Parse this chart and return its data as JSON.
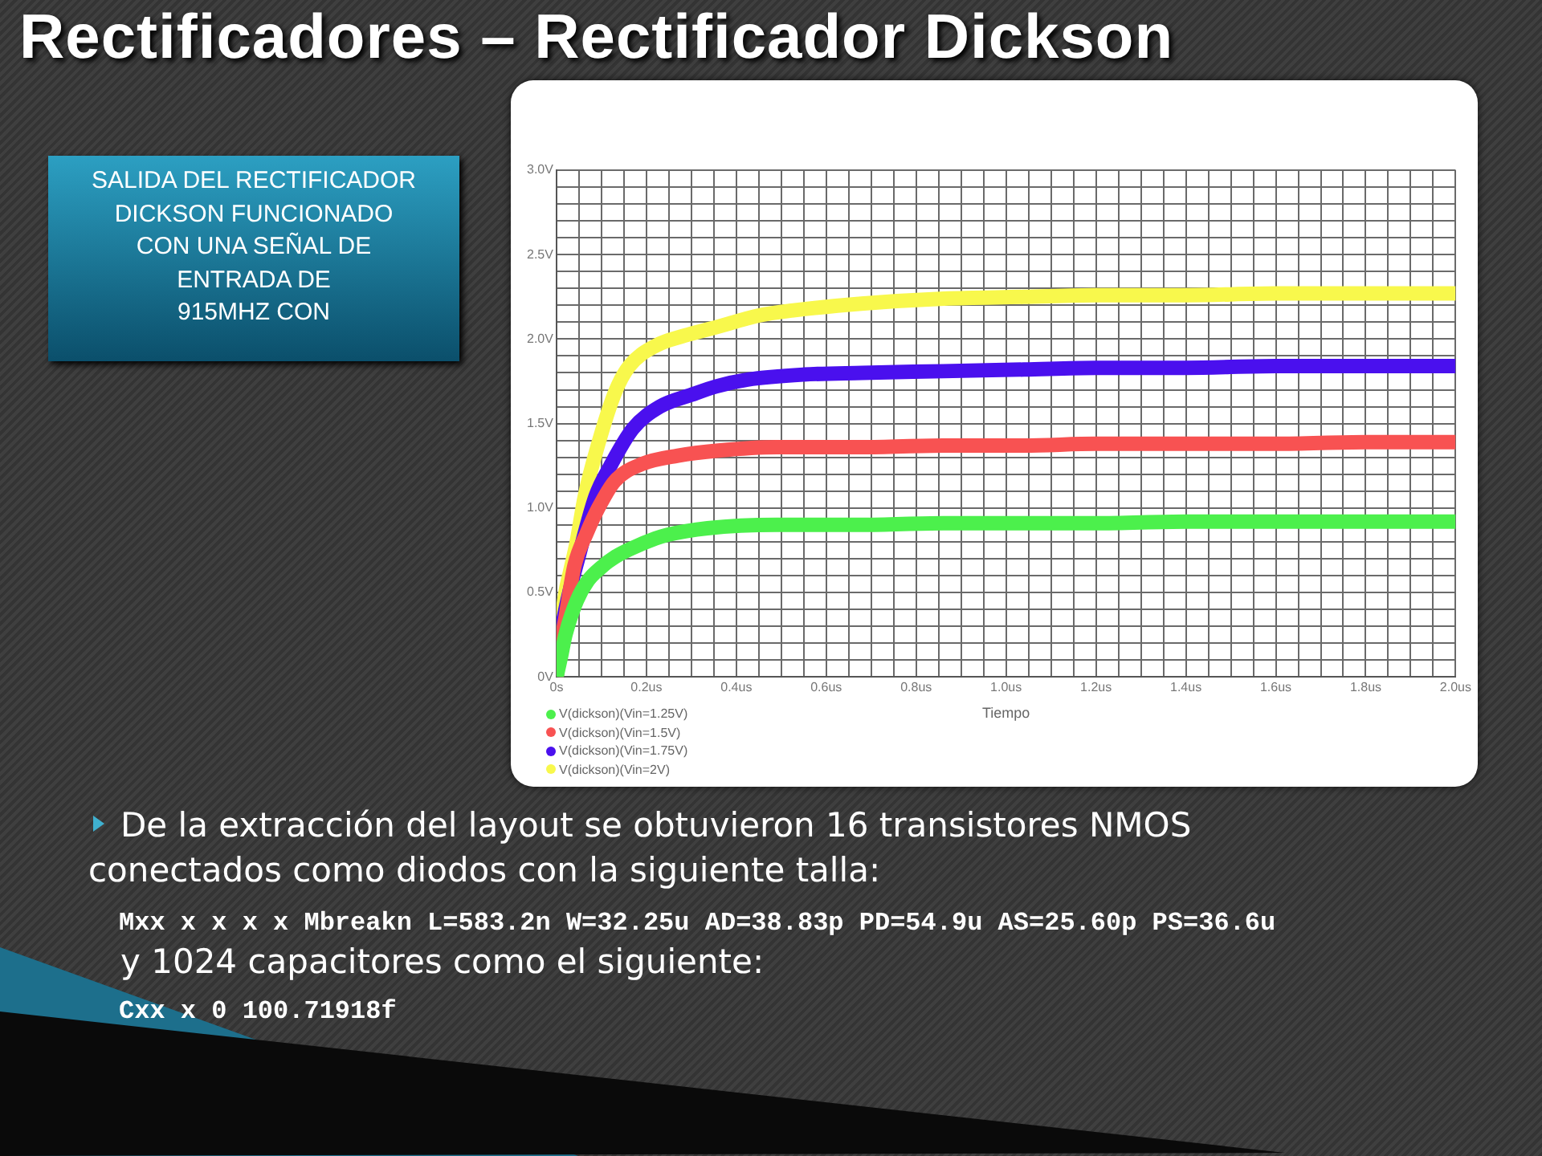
{
  "chart_data": {
    "type": "line",
    "title": "Rectificadores – Rectificador Dickson",
    "xlabel": "Tiempo",
    "xlim": [
      0,
      2.0
    ],
    "ylim": [
      0,
      3.0
    ],
    "xticks": [
      {
        "value": 0,
        "label": "0s"
      },
      {
        "value": 0.05,
        "label": null
      },
      {
        "value": 0.1,
        "label": null
      },
      {
        "value": 0.15,
        "label": null
      },
      {
        "value": 0.2,
        "label": "0.2us"
      },
      {
        "value": 0.25,
        "label": null
      },
      {
        "value": 0.3,
        "label": null
      },
      {
        "value": 0.35,
        "label": null
      },
      {
        "value": 0.4,
        "label": "0.4us"
      },
      {
        "value": 0.45,
        "label": null
      },
      {
        "value": 0.5,
        "label": null
      },
      {
        "value": 0.55,
        "label": null
      },
      {
        "value": 0.6,
        "label": "0.6us"
      },
      {
        "value": 0.65,
        "label": null
      },
      {
        "value": 0.7,
        "label": null
      },
      {
        "value": 0.75,
        "label": null
      },
      {
        "value": 0.8,
        "label": "0.8us"
      },
      {
        "value": 0.85,
        "label": null
      },
      {
        "value": 0.9,
        "label": null
      },
      {
        "value": 0.95,
        "label": null
      },
      {
        "value": 1.0,
        "label": "1.0us"
      },
      {
        "value": 1.05,
        "label": null
      },
      {
        "value": 1.1,
        "label": null
      },
      {
        "value": 1.15,
        "label": null
      },
      {
        "value": 1.2,
        "label": "1.2us"
      },
      {
        "value": 1.25,
        "label": null
      },
      {
        "value": 1.3,
        "label": null
      },
      {
        "value": 1.35,
        "label": null
      },
      {
        "value": 1.4,
        "label": "1.4us"
      },
      {
        "value": 1.45,
        "label": null
      },
      {
        "value": 1.5,
        "label": null
      },
      {
        "value": 1.55,
        "label": null
      },
      {
        "value": 1.6,
        "label": "1.6us"
      },
      {
        "value": 1.65,
        "label": null
      },
      {
        "value": 1.7,
        "label": null
      },
      {
        "value": 1.75,
        "label": null
      },
      {
        "value": 1.8,
        "label": "1.8us"
      },
      {
        "value": 1.85,
        "label": null
      },
      {
        "value": 1.9,
        "label": null
      },
      {
        "value": 1.95,
        "label": null
      },
      {
        "value": 2.0,
        "label": "2.0us"
      }
    ],
    "yticks": [
      {
        "value": 0,
        "label": "0V"
      },
      {
        "value": 0.1,
        "label": null
      },
      {
        "value": 0.2,
        "label": null
      },
      {
        "value": 0.3,
        "label": null
      },
      {
        "value": 0.4,
        "label": null
      },
      {
        "value": 0.5,
        "label": "0.5V"
      },
      {
        "value": 0.6,
        "label": null
      },
      {
        "value": 0.7,
        "label": null
      },
      {
        "value": 0.8,
        "label": null
      },
      {
        "value": 0.9,
        "label": null
      },
      {
        "value": 1.0,
        "label": "1.0V"
      },
      {
        "value": 1.1,
        "label": null
      },
      {
        "value": 1.2,
        "label": null
      },
      {
        "value": 1.3,
        "label": null
      },
      {
        "value": 1.4,
        "label": null
      },
      {
        "value": 1.5,
        "label": "1.5V"
      },
      {
        "value": 1.6,
        "label": null
      },
      {
        "value": 1.7,
        "label": null
      },
      {
        "value": 1.8,
        "label": null
      },
      {
        "value": 1.9,
        "label": null
      },
      {
        "value": 2.0,
        "label": "2.0V"
      },
      {
        "value": 2.1,
        "label": null
      },
      {
        "value": 2.2,
        "label": null
      },
      {
        "value": 2.3,
        "label": null
      },
      {
        "value": 2.4,
        "label": null
      },
      {
        "value": 2.5,
        "label": "2.5V"
      },
      {
        "value": 2.6,
        "label": null
      },
      {
        "value": 2.7,
        "label": null
      },
      {
        "value": 2.8,
        "label": null
      },
      {
        "value": 2.9,
        "label": null
      },
      {
        "value": 3.0,
        "label": "3.0V"
      }
    ],
    "grid": true,
    "legend": "bottom left",
    "marker": "none",
    "series": [
      {
        "name": "V(dickson)(Vin=1.25V)",
        "color": "#4cf04c",
        "x": [
          0,
          0.01,
          0.02,
          0.045,
          0.07,
          0.1,
          0.13,
          0.166,
          0.22,
          0.245,
          0.336,
          0.49,
          0.68,
          0.86,
          1.04,
          1.2,
          1.4,
          1.6,
          1.8,
          2.0
        ],
        "values": [
          0,
          0.12,
          0.25,
          0.45,
          0.57,
          0.65,
          0.71,
          0.76,
          0.82,
          0.84,
          0.88,
          0.9,
          0.9,
          0.91,
          0.91,
          0.91,
          0.92,
          0.92,
          0.92,
          0.92
        ]
      },
      {
        "name": "V(dickson)(Vin=1.5V)",
        "color": "#f85252",
        "x": [
          0,
          0.01,
          0.02,
          0.04,
          0.067,
          0.093,
          0.13,
          0.19,
          0.27,
          0.36,
          0.49,
          0.68,
          0.86,
          1.04,
          1.2,
          1.4,
          1.6,
          1.8,
          2.0
        ],
        "values": [
          0,
          0.2,
          0.35,
          0.66,
          0.85,
          1.0,
          1.16,
          1.26,
          1.31,
          1.34,
          1.36,
          1.36,
          1.37,
          1.37,
          1.38,
          1.38,
          1.38,
          1.39,
          1.39
        ]
      },
      {
        "name": "V(dickson)(Vin=1.75V)",
        "color": "#4a10ee",
        "x": [
          0,
          0.01,
          0.02,
          0.05,
          0.087,
          0.12,
          0.17,
          0.23,
          0.3,
          0.355,
          0.425,
          0.55,
          0.68,
          0.86,
          1.04,
          1.2,
          1.4,
          1.6,
          1.8,
          2.0
        ],
        "values": [
          0,
          0.25,
          0.4,
          0.72,
          1.07,
          1.25,
          1.47,
          1.6,
          1.67,
          1.72,
          1.76,
          1.79,
          1.8,
          1.81,
          1.82,
          1.83,
          1.83,
          1.84,
          1.84,
          1.84
        ]
      },
      {
        "name": "V(dickson)(Vin=2V)",
        "color": "#f8f84c",
        "x": [
          0,
          0.01,
          0.02,
          0.03,
          0.045,
          0.063,
          0.093,
          0.131,
          0.162,
          0.22,
          0.284,
          0.355,
          0.45,
          0.527,
          0.678,
          0.862,
          1.04,
          1.2,
          1.4,
          1.6,
          1.8,
          2.0
        ],
        "values": [
          0,
          0.3,
          0.5,
          0.62,
          0.8,
          1.07,
          1.38,
          1.69,
          1.84,
          1.96,
          2.02,
          2.07,
          2.14,
          2.17,
          2.21,
          2.24,
          2.25,
          2.26,
          2.26,
          2.27,
          2.27,
          2.27
        ]
      }
    ],
    "annotations": [
      "SALIDA DEL RECTIFICADOR\nDICKSON FUNCIONADO\nCON UNA SEÑAL DE\nENTRADA DE\n915MHZ CON",
      "De la extracción del layout se obtuvieron 16 transistores NMOS conectados como diodos con la siguiente talla:",
      "Mxx x x x x Mbreakn L=583.2n W=32.25u AD=38.83p PD=54.9u AS=25.60p PS=36.6u",
      "y 1024 capacitores como el siguiente:",
      "Cxx x 0 100.71918f"
    ]
  }
}
